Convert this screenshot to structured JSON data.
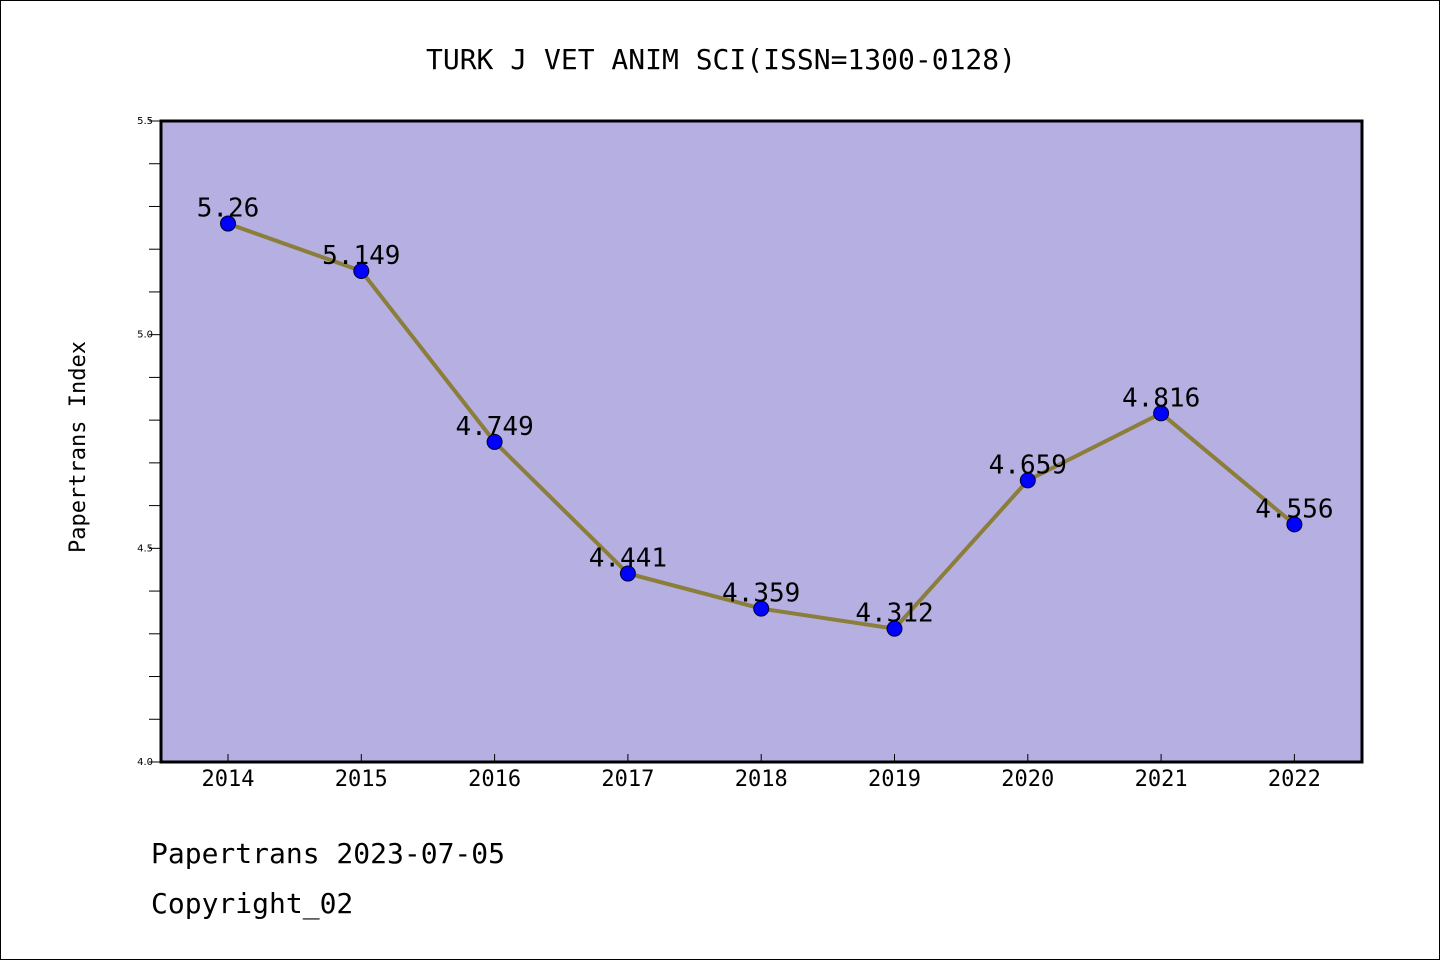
{
  "chart_data": {
    "type": "line",
    "title": "TURK J VET ANIM SCI(ISSN=1300-0128)",
    "ylabel": "Papertrans Index",
    "xlabel": "",
    "categories": [
      "2014",
      "2015",
      "2016",
      "2017",
      "2018",
      "2019",
      "2020",
      "2021",
      "2022"
    ],
    "values": [
      5.26,
      5.149,
      4.749,
      4.441,
      4.359,
      4.312,
      4.659,
      4.816,
      4.556
    ],
    "data_labels": [
      "5.26",
      "5.149",
      "4.749",
      "4.441",
      "4.359",
      "4.312",
      "4.659",
      "4.816",
      "4.556"
    ],
    "ylim": [
      4.0,
      5.5
    ],
    "yticks": [
      "4.0",
      "4.5",
      "5.0",
      "5.5"
    ],
    "yminor_step": 0.1,
    "grid": false,
    "colors": {
      "plot_background": "#b5afe2",
      "line": "#8b7d3a",
      "marker": "#0000ff"
    }
  },
  "footer": {
    "line1": "Papertrans 2023-07-05",
    "line2": "Copyright_02"
  }
}
